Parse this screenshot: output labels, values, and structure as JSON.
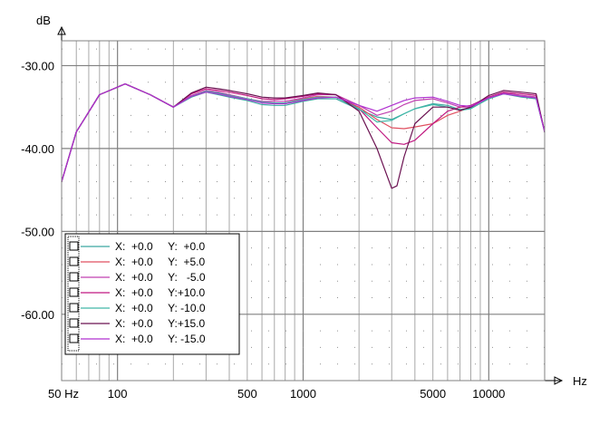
{
  "chart_data": {
    "type": "line",
    "xscale": "log",
    "xlim": [
      50,
      20000
    ],
    "ylim": [
      -68,
      -27
    ],
    "xlabel": "Hz",
    "ylabel": "dB",
    "y_ticks": [
      -30,
      -40,
      -50,
      -60
    ],
    "y_tick_labels": [
      "-30.00",
      "-40.00",
      "-50.00",
      "-60.00"
    ],
    "x_ticks": [
      50,
      100,
      500,
      1000,
      5000,
      10000
    ],
    "x_tick_labels": [
      "50 Hz",
      "100",
      "500",
      "1000",
      "5000",
      "10000"
    ],
    "grid": true,
    "legend_placement": "bottom-left",
    "series": [
      {
        "name": "X:  +0.0     Y:  +0.0",
        "color": "#3aa8a0",
        "x": [
          50,
          60,
          80,
          110,
          150,
          200,
          250,
          300,
          350,
          400,
          500,
          600,
          700,
          800,
          1000,
          1200,
          1500,
          2000,
          2500,
          3000,
          3500,
          4000,
          5000,
          6000,
          7000,
          8000,
          10000,
          12000,
          15000,
          18000,
          20000
        ],
        "y": [
          -44,
          -38,
          -33.5,
          -32.2,
          -33.5,
          -35,
          -33.8,
          -33.2,
          -33.5,
          -33.8,
          -34.2,
          -34.7,
          -34.8,
          -34.8,
          -34.3,
          -34,
          -34,
          -35.3,
          -36.2,
          -36.5,
          -35.8,
          -35.2,
          -34.6,
          -34.8,
          -35.3,
          -35.1,
          -34,
          -33.4,
          -33.8,
          -34,
          -38
        ]
      },
      {
        "name": "X:  +0.0     Y:  +5.0",
        "color": "#e05060",
        "x": [
          50,
          60,
          80,
          110,
          150,
          200,
          250,
          300,
          350,
          400,
          500,
          600,
          700,
          800,
          1000,
          1200,
          1500,
          2000,
          2500,
          3000,
          3500,
          4000,
          5000,
          6000,
          7000,
          8000,
          10000,
          12000,
          15000,
          18000,
          20000
        ],
        "y": [
          -44,
          -38,
          -33.5,
          -32.2,
          -33.5,
          -35,
          -33.6,
          -33,
          -33.2,
          -33.5,
          -34,
          -34.4,
          -34.5,
          -34.5,
          -34,
          -33.7,
          -33.8,
          -35,
          -36.5,
          -37.5,
          -37.6,
          -37.4,
          -37,
          -36,
          -35.5,
          -35,
          -34,
          -33.3,
          -33.6,
          -33.8,
          -38
        ]
      },
      {
        "name": "X:  +0.0     Y:   -5.0",
        "color": "#c040b0",
        "x": [
          50,
          60,
          80,
          110,
          150,
          200,
          250,
          300,
          350,
          400,
          500,
          600,
          700,
          800,
          1000,
          1200,
          1500,
          2000,
          2500,
          3000,
          3500,
          4000,
          5000,
          6000,
          7000,
          8000,
          10000,
          12000,
          15000,
          18000,
          20000
        ],
        "y": [
          -44,
          -38,
          -33.5,
          -32.2,
          -33.5,
          -35,
          -33.6,
          -33,
          -33.2,
          -33.5,
          -34,
          -34.3,
          -34.3,
          -34.3,
          -33.9,
          -33.5,
          -33.5,
          -34.8,
          -36,
          -35.5,
          -34.7,
          -34.2,
          -34,
          -34.5,
          -35,
          -35,
          -34,
          -33.3,
          -33.6,
          -33.8,
          -38
        ]
      },
      {
        "name": "X:  +0.0     Y:+10.0",
        "color": "#c01880",
        "x": [
          50,
          60,
          80,
          110,
          150,
          200,
          250,
          300,
          350,
          400,
          500,
          600,
          700,
          800,
          1000,
          1200,
          1500,
          2000,
          2500,
          3000,
          3500,
          4000,
          5000,
          6000,
          7000,
          8000,
          10000,
          12000,
          15000,
          18000,
          20000
        ],
        "y": [
          -44,
          -38,
          -33.5,
          -32.2,
          -33.5,
          -35,
          -33.4,
          -32.8,
          -33,
          -33.2,
          -33.6,
          -34,
          -34.1,
          -34,
          -33.7,
          -33.4,
          -33.5,
          -35.2,
          -37.5,
          -39.3,
          -39.5,
          -39,
          -37,
          -35.5,
          -35,
          -34.8,
          -33.8,
          -33.2,
          -33.4,
          -33.6,
          -38
        ]
      },
      {
        "name": "X:  +0.0     Y: -10.0",
        "color": "#40b8a8",
        "x": [
          50,
          60,
          80,
          110,
          150,
          200,
          250,
          300,
          350,
          400,
          500,
          600,
          700,
          800,
          1000,
          1200,
          1500,
          2000,
          2500,
          3000,
          3500,
          4000,
          5000,
          6000,
          7000,
          8000,
          10000,
          12000,
          15000,
          18000,
          20000
        ],
        "y": [
          -44,
          -38,
          -33.5,
          -32.2,
          -33.5,
          -35,
          -33.7,
          -33.1,
          -33.3,
          -33.6,
          -34,
          -34.4,
          -34.5,
          -34.5,
          -34.1,
          -33.8,
          -33.8,
          -35.2,
          -36.8,
          -36.6,
          -35.8,
          -35.2,
          -34.7,
          -35,
          -35.4,
          -35.2,
          -34,
          -33.4,
          -33.7,
          -33.9,
          -38
        ]
      },
      {
        "name": "X:  +0.0     Y:+15.0",
        "color": "#6a1050",
        "x": [
          50,
          60,
          80,
          110,
          150,
          200,
          250,
          300,
          350,
          400,
          500,
          600,
          700,
          800,
          1000,
          1200,
          1500,
          2000,
          2500,
          3000,
          3200,
          3500,
          4000,
          5000,
          6000,
          7000,
          8000,
          10000,
          12000,
          15000,
          18000,
          20000
        ],
        "y": [
          -44,
          -38,
          -33.5,
          -32.2,
          -33.5,
          -35,
          -33.3,
          -32.6,
          -32.8,
          -33,
          -33.4,
          -33.8,
          -33.9,
          -33.9,
          -33.6,
          -33.3,
          -33.5,
          -35.5,
          -40,
          -44.8,
          -44.5,
          -41,
          -37,
          -35,
          -35,
          -35.4,
          -35,
          -33.6,
          -33,
          -33.2,
          -33.4,
          -38
        ]
      },
      {
        "name": "X:  +0.0     Y: -15.0",
        "color": "#b030d0",
        "x": [
          50,
          60,
          80,
          110,
          150,
          200,
          250,
          300,
          350,
          400,
          500,
          600,
          700,
          800,
          1000,
          1200,
          1500,
          2000,
          2500,
          3000,
          3500,
          4000,
          5000,
          6000,
          7000,
          8000,
          10000,
          12000,
          15000,
          18000,
          20000
        ],
        "y": [
          -44,
          -38,
          -33.5,
          -32.2,
          -33.5,
          -35,
          -33.7,
          -33.2,
          -33.4,
          -33.7,
          -34.1,
          -34.5,
          -34.6,
          -34.6,
          -34.2,
          -33.9,
          -33.8,
          -34.8,
          -35.5,
          -34.8,
          -34.2,
          -33.9,
          -33.8,
          -34.3,
          -34.8,
          -34.9,
          -33.9,
          -33.4,
          -33.7,
          -33.9,
          -38
        ]
      }
    ]
  }
}
